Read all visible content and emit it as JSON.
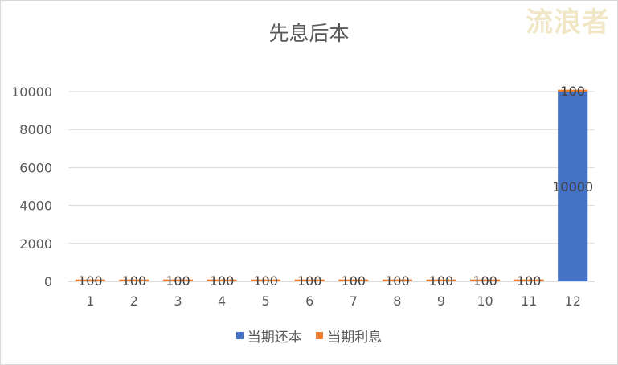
{
  "watermark": "流浪者",
  "chart_data": {
    "type": "bar",
    "stacked": true,
    "title": "先息后本",
    "xlabel": "",
    "ylabel": "",
    "categories": [
      "1",
      "2",
      "3",
      "4",
      "5",
      "6",
      "7",
      "8",
      "9",
      "10",
      "11",
      "12"
    ],
    "series": [
      {
        "name": "当期还本",
        "color": "#4472c4",
        "values": [
          0,
          0,
          0,
          0,
          0,
          0,
          0,
          0,
          0,
          0,
          0,
          10000
        ],
        "data_labels": [
          "",
          "",
          "",
          "",
          "",
          "",
          "",
          "",
          "",
          "",
          "",
          "10000"
        ]
      },
      {
        "name": "当期利息",
        "color": "#ed7d31",
        "values": [
          100,
          100,
          100,
          100,
          100,
          100,
          100,
          100,
          100,
          100,
          100,
          100
        ],
        "data_labels": [
          "100",
          "100",
          "100",
          "100",
          "100",
          "100",
          "100",
          "100",
          "100",
          "100",
          "100",
          "100"
        ]
      }
    ],
    "ylim": [
      0,
      10000
    ],
    "yticks": [
      0,
      2000,
      4000,
      6000,
      8000,
      10000
    ],
    "grid": true,
    "legend_position": "bottom"
  }
}
